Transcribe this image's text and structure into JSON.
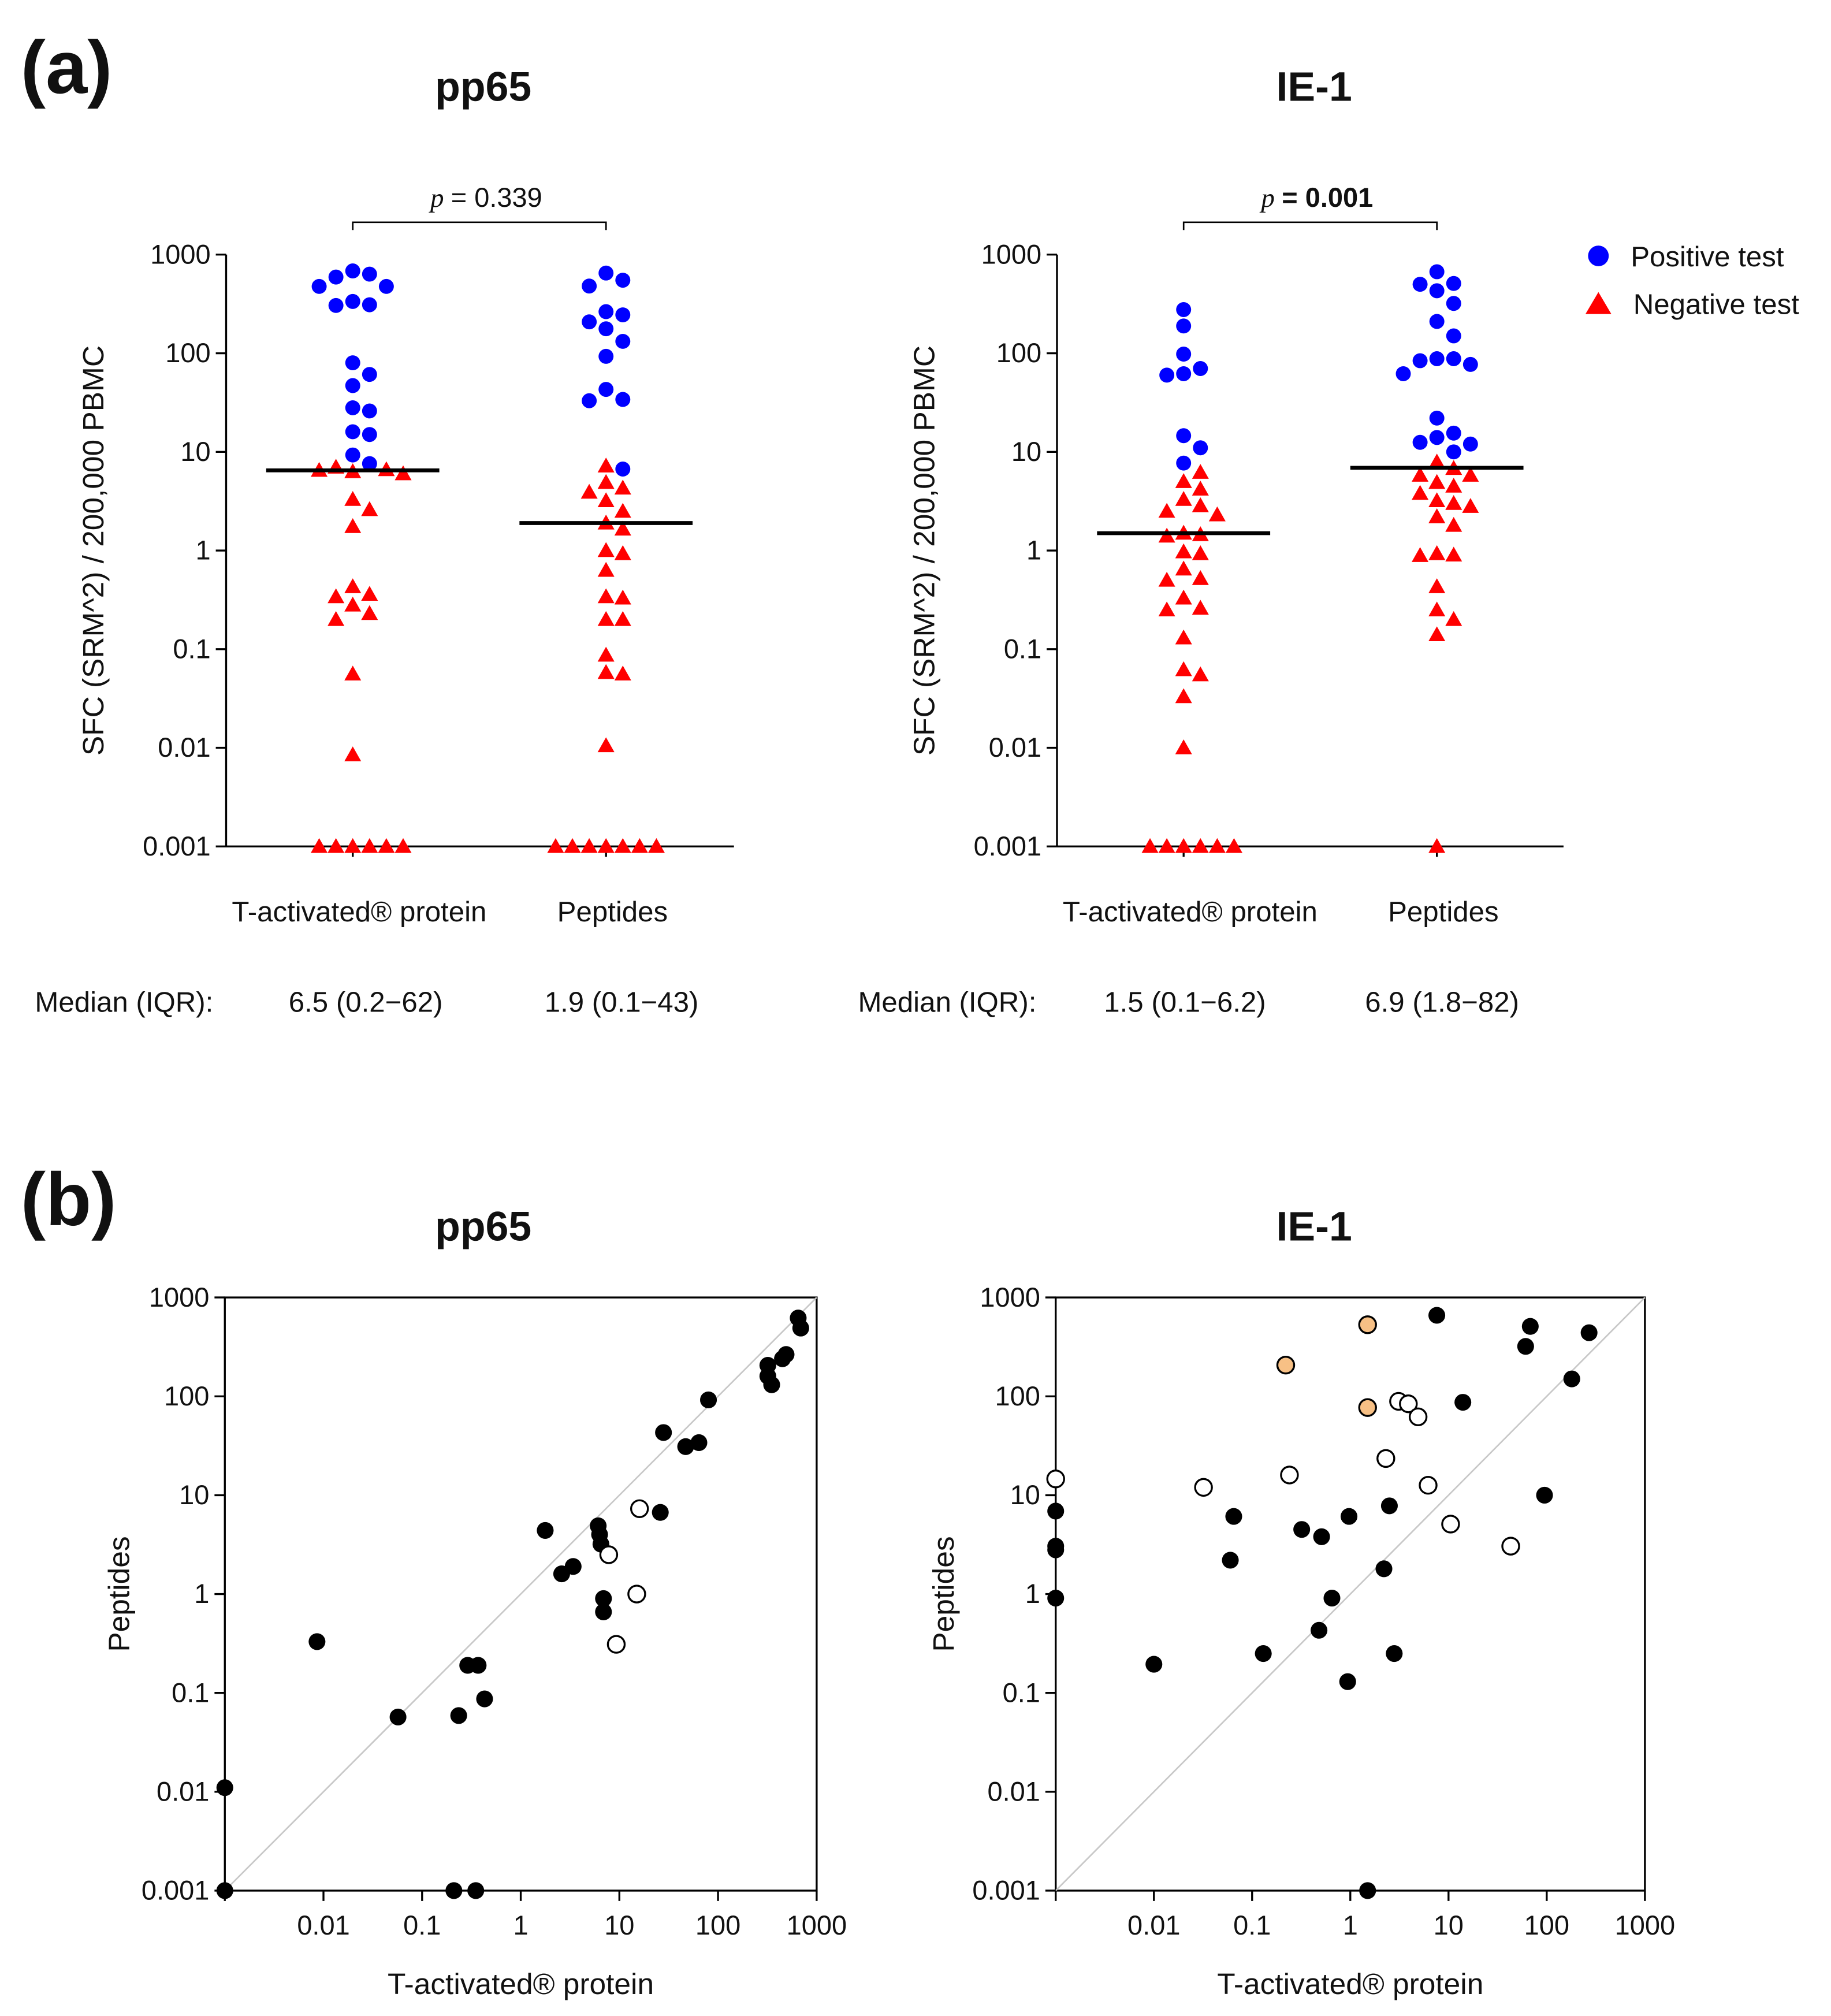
{
  "figure": {
    "panel_a_label": "(a)",
    "panel_b_label": "(b)"
  },
  "legend": [
    {
      "label": "Positive test",
      "color": "#0000ff",
      "marker": "circle"
    },
    {
      "label": "Negative test",
      "color": "#ff0000",
      "marker": "triangle"
    }
  ],
  "chart_data": [
    {
      "type": "scatter",
      "panel": "a",
      "title": "pp65",
      "ylabel": "SFC (SRM^2) / 200,000 PBMC",
      "yscale": "log",
      "ylim": [
        0.001,
        1000
      ],
      "ytick_labels": [
        "1000",
        "100",
        "10",
        "1",
        "0.1",
        "0.01",
        "0.001"
      ],
      "p_label": "p",
      "p_text": "= 0.339",
      "p_bold": false,
      "median_label": "Median (IQR):",
      "groups": [
        {
          "category": "T-activated® protein",
          "median": 6.5,
          "summary": "6.5 (0.2−62)",
          "positive": [
            683,
            634,
            592,
            476,
            476,
            335,
            305,
            310,
            80,
            61,
            47,
            28,
            26,
            16,
            15,
            9.3,
            7.6
          ],
          "negative": [
            7.0,
            6.6,
            6.5,
            6.3,
            6.0,
            3.3,
            2.6,
            1.75,
            0.43,
            0.36,
            0.34,
            0.28,
            0.23,
            0.2,
            0.056,
            0.0085,
            0.001,
            0.001,
            0.001,
            0.001,
            0.001,
            0.001
          ]
        },
        {
          "category": "Peptides",
          "median": 1.9,
          "summary": "1.9 (0.1−43)",
          "positive": [
            650,
            550,
            480,
            264,
            245,
            208,
            177,
            132,
            93,
            43,
            34,
            33,
            6.7
          ],
          "negative": [
            7.2,
            4.9,
            4.3,
            3.9,
            3.2,
            2.5,
            1.9,
            1.65,
            1.0,
            0.93,
            0.63,
            0.34,
            0.33,
            0.2,
            0.2,
            0.087,
            0.058,
            0.056,
            0.0105,
            0.001,
            0.001,
            0.001,
            0.001,
            0.001,
            0.001,
            0.001
          ]
        }
      ]
    },
    {
      "type": "scatter",
      "panel": "a",
      "title": "IE-1",
      "ylabel": "SFC (SRM^2) / 200,000 PBMC",
      "yscale": "log",
      "ylim": [
        0.001,
        1000
      ],
      "ytick_labels": [
        "1000",
        "100",
        "10",
        "1",
        "0.1",
        "0.01",
        "0.001"
      ],
      "p_label": "p",
      "p_text": "= 0.001",
      "p_bold": true,
      "median_label": "Median (IQR):",
      "groups": [
        {
          "category": "T-activated® protein",
          "median": 1.5,
          "summary": "1.5 (0.1−6.2)",
          "positive": [
            277,
            189,
            98,
            70,
            62,
            60,
            14.6,
            11,
            7.7
          ],
          "negative": [
            6.2,
            5.0,
            4.2,
            3.3,
            2.85,
            2.5,
            2.3,
            1.5,
            1.45,
            1.4,
            0.97,
            0.93,
            0.65,
            0.52,
            0.5,
            0.33,
            0.26,
            0.25,
            0.13,
            0.062,
            0.055,
            0.033,
            0.01,
            0.001,
            0.001,
            0.001,
            0.001,
            0.001,
            0.001
          ]
        },
        {
          "category": "Peptides",
          "median": 6.9,
          "summary": "6.9 (1.8−82)",
          "positive": [
            670,
            510,
            500,
            430,
            320,
            210,
            150,
            88,
            88,
            84,
            77,
            62,
            22,
            15.5,
            14,
            12.5,
            12,
            10
          ],
          "negative": [
            7.9,
            6.8,
            5.8,
            5.8,
            4.9,
            4.5,
            3.8,
            3.2,
            3.0,
            2.8,
            2.2,
            1.8,
            0.93,
            0.9,
            0.89,
            0.43,
            0.25,
            0.2,
            0.14,
            0.001
          ]
        }
      ]
    },
    {
      "type": "scatter",
      "panel": "b",
      "title": "pp65",
      "xlabel": "T-activated® protein",
      "ylabel": "Peptides",
      "xscale": "log",
      "yscale": "log",
      "xlim": [
        0.001,
        1000
      ],
      "ylim": [
        0.001,
        1000
      ],
      "xtick_labels": [
        "",
        "0.01",
        "0.1",
        "1",
        "10",
        "100",
        "1000"
      ],
      "ytick_labels": [
        "1000",
        "100",
        "10",
        "1",
        "0.1",
        "0.01",
        "0.001"
      ],
      "identity_line": true,
      "colors": {
        "filled": "#000000",
        "open": "#ffffff",
        "orange": "#f7c085"
      },
      "points": [
        {
          "x": 0.001,
          "y": 0.001,
          "style": "filled"
        },
        {
          "x": 0.001,
          "y": 0.011,
          "style": "filled"
        },
        {
          "x": 0.0086,
          "y": 0.33,
          "style": "filled"
        },
        {
          "x": 0.057,
          "y": 0.057,
          "style": "filled"
        },
        {
          "x": 0.235,
          "y": 0.059,
          "style": "filled"
        },
        {
          "x": 0.29,
          "y": 0.19,
          "style": "filled"
        },
        {
          "x": 0.37,
          "y": 0.19,
          "style": "filled"
        },
        {
          "x": 0.43,
          "y": 0.087,
          "style": "filled"
        },
        {
          "x": 0.21,
          "y": 0.001,
          "style": "filled"
        },
        {
          "x": 0.35,
          "y": 0.001,
          "style": "filled"
        },
        {
          "x": 1.77,
          "y": 4.4,
          "style": "filled"
        },
        {
          "x": 2.6,
          "y": 1.6,
          "style": "filled"
        },
        {
          "x": 3.4,
          "y": 1.9,
          "style": "filled"
        },
        {
          "x": 6.1,
          "y": 4.9,
          "style": "filled"
        },
        {
          "x": 6.3,
          "y": 4.0,
          "style": "filled"
        },
        {
          "x": 6.5,
          "y": 3.2,
          "style": "filled"
        },
        {
          "x": 6.9,
          "y": 0.9,
          "style": "filled"
        },
        {
          "x": 6.9,
          "y": 0.66,
          "style": "filled"
        },
        {
          "x": 26,
          "y": 6.7,
          "style": "filled"
        },
        {
          "x": 28,
          "y": 43,
          "style": "filled"
        },
        {
          "x": 47,
          "y": 31,
          "style": "filled"
        },
        {
          "x": 64,
          "y": 34,
          "style": "filled"
        },
        {
          "x": 80,
          "y": 92,
          "style": "filled"
        },
        {
          "x": 320,
          "y": 206,
          "style": "filled"
        },
        {
          "x": 320,
          "y": 160,
          "style": "filled"
        },
        {
          "x": 350,
          "y": 131,
          "style": "filled"
        },
        {
          "x": 490,
          "y": 265,
          "style": "filled"
        },
        {
          "x": 450,
          "y": 240,
          "style": "filled"
        },
        {
          "x": 650,
          "y": 620,
          "style": "filled"
        },
        {
          "x": 690,
          "y": 490,
          "style": "filled"
        },
        {
          "x": 16,
          "y": 7.3,
          "style": "open"
        },
        {
          "x": 7.8,
          "y": 2.5,
          "style": "open"
        },
        {
          "x": 15,
          "y": 1.0,
          "style": "open"
        },
        {
          "x": 9.3,
          "y": 0.31,
          "style": "open"
        }
      ]
    },
    {
      "type": "scatter",
      "panel": "b",
      "title": "IE-1",
      "xlabel": "T-activated® protein",
      "ylabel": "Peptides",
      "xscale": "log",
      "yscale": "log",
      "xlim": [
        0.001,
        1000
      ],
      "ylim": [
        0.001,
        1000
      ],
      "xtick_labels": [
        "",
        "0.01",
        "0.1",
        "1",
        "10",
        "100",
        "1000"
      ],
      "ytick_labels": [
        "1000",
        "100",
        "10",
        "1",
        "0.1",
        "0.01",
        "0.001"
      ],
      "identity_line": true,
      "colors": {
        "filled": "#000000",
        "open": "#ffffff",
        "orange": "#f7c085"
      },
      "points": [
        {
          "x": 0.001,
          "y": 6.9,
          "style": "filled"
        },
        {
          "x": 0.001,
          "y": 3.05,
          "style": "filled"
        },
        {
          "x": 0.001,
          "y": 2.8,
          "style": "filled"
        },
        {
          "x": 0.001,
          "y": 0.91,
          "style": "filled"
        },
        {
          "x": 0.01,
          "y": 0.195,
          "style": "filled"
        },
        {
          "x": 0.065,
          "y": 6.1,
          "style": "filled"
        },
        {
          "x": 0.06,
          "y": 2.2,
          "style": "filled"
        },
        {
          "x": 0.13,
          "y": 0.25,
          "style": "filled"
        },
        {
          "x": 0.32,
          "y": 4.5,
          "style": "filled"
        },
        {
          "x": 0.51,
          "y": 3.8,
          "style": "filled"
        },
        {
          "x": 0.48,
          "y": 0.43,
          "style": "filled"
        },
        {
          "x": 0.65,
          "y": 0.91,
          "style": "filled"
        },
        {
          "x": 0.97,
          "y": 6.1,
          "style": "filled"
        },
        {
          "x": 0.94,
          "y": 0.13,
          "style": "filled"
        },
        {
          "x": 2.2,
          "y": 1.8,
          "style": "filled"
        },
        {
          "x": 2.5,
          "y": 7.8,
          "style": "filled"
        },
        {
          "x": 2.8,
          "y": 0.25,
          "style": "filled"
        },
        {
          "x": 1.5,
          "y": 0.001,
          "style": "filled"
        },
        {
          "x": 7.6,
          "y": 660,
          "style": "filled"
        },
        {
          "x": 14,
          "y": 87,
          "style": "filled"
        },
        {
          "x": 68,
          "y": 510,
          "style": "filled"
        },
        {
          "x": 61,
          "y": 320,
          "style": "filled"
        },
        {
          "x": 270,
          "y": 440,
          "style": "filled"
        },
        {
          "x": 180,
          "y": 150,
          "style": "filled"
        },
        {
          "x": 95,
          "y": 10,
          "style": "filled"
        },
        {
          "x": 0.001,
          "y": 14.6,
          "style": "open"
        },
        {
          "x": 0.032,
          "y": 12,
          "style": "open"
        },
        {
          "x": 0.24,
          "y": 16,
          "style": "open"
        },
        {
          "x": 2.3,
          "y": 23.5,
          "style": "open"
        },
        {
          "x": 3.1,
          "y": 89,
          "style": "open"
        },
        {
          "x": 3.9,
          "y": 84,
          "style": "open"
        },
        {
          "x": 4.9,
          "y": 62,
          "style": "open"
        },
        {
          "x": 6.2,
          "y": 12.6,
          "style": "open"
        },
        {
          "x": 10.5,
          "y": 5.1,
          "style": "open"
        },
        {
          "x": 43,
          "y": 3.05,
          "style": "open"
        },
        {
          "x": 0.22,
          "y": 207,
          "style": "orange"
        },
        {
          "x": 1.5,
          "y": 530,
          "style": "orange"
        },
        {
          "x": 1.5,
          "y": 77,
          "style": "orange"
        }
      ]
    }
  ]
}
